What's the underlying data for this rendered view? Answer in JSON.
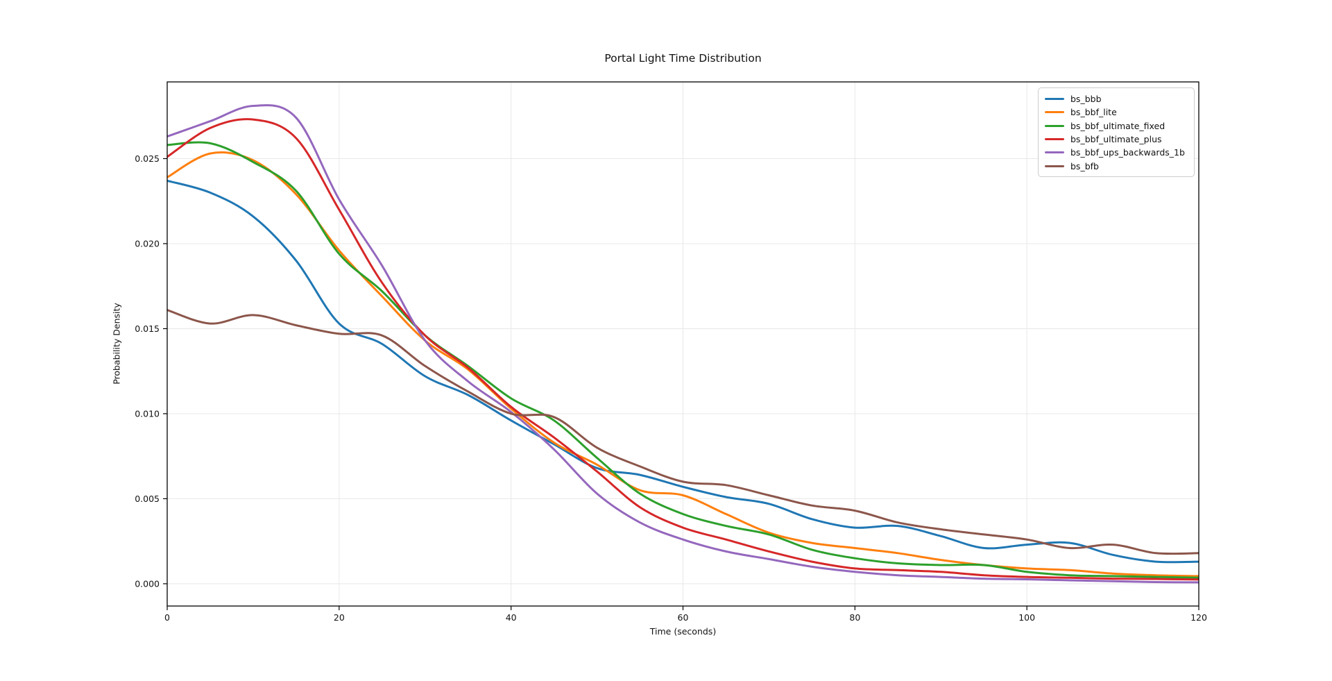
{
  "chart_data": {
    "type": "line",
    "title": "Portal Light Time Distribution",
    "xlabel": "Time (seconds)",
    "ylabel": "Probability Density",
    "x": [
      0,
      5,
      10,
      15,
      20,
      25,
      30,
      35,
      40,
      45,
      50,
      55,
      60,
      65,
      70,
      75,
      80,
      85,
      90,
      95,
      100,
      105,
      110,
      115,
      120
    ],
    "series": [
      {
        "name": "bs_bbb",
        "color": "#1f77b4",
        "values": [
          0.0237,
          0.023,
          0.0216,
          0.019,
          0.0153,
          0.0141,
          0.0122,
          0.0111,
          0.0096,
          0.0082,
          0.0068,
          0.0064,
          0.0057,
          0.0051,
          0.0047,
          0.0038,
          0.0033,
          0.0034,
          0.0028,
          0.0021,
          0.0023,
          0.0024,
          0.0017,
          0.0013,
          0.0013
        ]
      },
      {
        "name": "bs_bbf_lite",
        "color": "#ff7f0e",
        "values": [
          0.0239,
          0.0253,
          0.0249,
          0.0229,
          0.0196,
          0.0169,
          0.0143,
          0.0126,
          0.0103,
          0.0083,
          0.007,
          0.0055,
          0.0052,
          0.0041,
          0.003,
          0.0024,
          0.0021,
          0.0018,
          0.0014,
          0.0011,
          0.0009,
          0.0008,
          0.0006,
          0.0005,
          0.00045
        ]
      },
      {
        "name": "bs_bbf_ultimate_fixed",
        "color": "#2ca02c",
        "values": [
          0.0258,
          0.0259,
          0.0248,
          0.0231,
          0.0194,
          0.0172,
          0.0146,
          0.0128,
          0.0109,
          0.0096,
          0.0074,
          0.0053,
          0.0041,
          0.0034,
          0.0029,
          0.002,
          0.0015,
          0.0012,
          0.0011,
          0.0011,
          0.0007,
          0.0005,
          0.00045,
          0.0004,
          0.00035
        ]
      },
      {
        "name": "bs_bbf_ultimate_plus",
        "color": "#d62728",
        "values": [
          0.0251,
          0.0268,
          0.0273,
          0.0262,
          0.022,
          0.0177,
          0.0146,
          0.0127,
          0.0104,
          0.0086,
          0.0066,
          0.0045,
          0.0033,
          0.0026,
          0.0019,
          0.0013,
          0.0009,
          0.0008,
          0.0007,
          0.0005,
          0.0004,
          0.00035,
          0.0003,
          0.00028,
          0.00025
        ]
      },
      {
        "name": "bs_bbf_ups_backwards_1b",
        "color": "#9467bd",
        "values": [
          0.0263,
          0.0272,
          0.0281,
          0.0274,
          0.0226,
          0.0187,
          0.0143,
          0.0119,
          0.0101,
          0.0079,
          0.0053,
          0.0036,
          0.0026,
          0.0019,
          0.00145,
          0.001,
          0.0007,
          0.0005,
          0.0004,
          0.0003,
          0.00026,
          0.0002,
          0.00015,
          0.0001,
          8e-05
        ]
      },
      {
        "name": "bs_bfb",
        "color": "#8c564b",
        "values": [
          0.0161,
          0.0153,
          0.0158,
          0.0152,
          0.0147,
          0.0146,
          0.0128,
          0.0113,
          0.01,
          0.0098,
          0.008,
          0.0069,
          0.006,
          0.0058,
          0.0052,
          0.0046,
          0.0043,
          0.0036,
          0.0032,
          0.0029,
          0.0026,
          0.0021,
          0.0023,
          0.0018,
          0.0018
        ]
      }
    ],
    "xticks": {
      "values": [
        0,
        20,
        40,
        60,
        80,
        100,
        120
      ],
      "labels": [
        "0",
        "20",
        "40",
        "60",
        "80",
        "100",
        "120"
      ]
    },
    "yticks": {
      "values": [
        0,
        0.005,
        0.01,
        0.015,
        0.02,
        0.025
      ],
      "labels": [
        "0.000",
        "0.005",
        "0.010",
        "0.015",
        "0.020",
        "0.025"
      ]
    },
    "xlim": [
      0,
      120
    ],
    "ylim": [
      -0.00131,
      0.02951
    ],
    "grid": true,
    "legend_position": "upper right",
    "line_width": 3
  }
}
